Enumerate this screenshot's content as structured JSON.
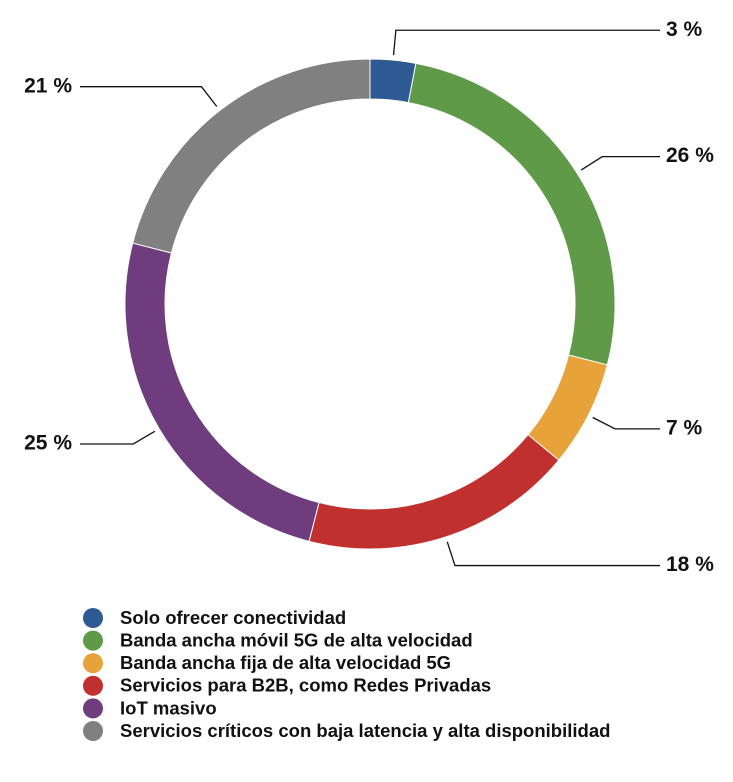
{
  "chart_data": {
    "type": "donut",
    "categories": [
      "Solo ofrecer conectividad",
      "Banda ancha móvil 5G de alta velocidad",
      "Banda ancha fija de alta velocidad 5G",
      "Servicios para B2B, como Redes Privadas",
      "IoT masivo",
      "Servicios críticos con baja latencia y alta disponibilidad"
    ],
    "values": [
      3,
      26,
      7,
      18,
      25,
      21
    ],
    "value_labels": [
      "3 %",
      "26 %",
      "7 %",
      "18 %",
      "25 %",
      "21 %"
    ],
    "colors": [
      "#2e5a93",
      "#5e9a48",
      "#e8a23a",
      "#c0302f",
      "#6f3c7d",
      "#808080"
    ],
    "legend": "bottom"
  }
}
